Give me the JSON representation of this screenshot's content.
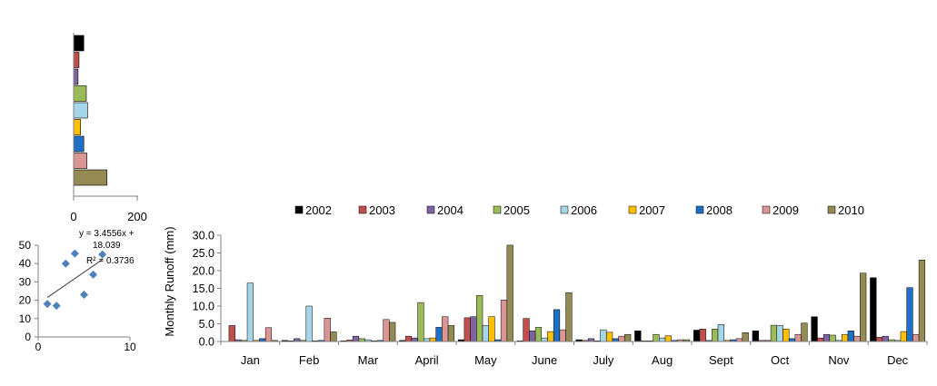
{
  "colors": {
    "2002": "#000000",
    "2003": "#c0504d",
    "2004": "#8064a2",
    "2005": "#9bbb59",
    "2006": "#a5d5e8",
    "2007": "#ffc000",
    "2008": "#1f6fc2",
    "2009": "#d99694",
    "2010": "#948a54",
    "scatter_point": "#4f81bd",
    "axis": "#808080"
  },
  "chart_data": [
    {
      "type": "bar",
      "orientation": "horizontal",
      "categories": [
        "2002",
        "2003",
        "2004",
        "2005",
        "2006",
        "2007",
        "2008",
        "2009",
        "2010"
      ],
      "values": [
        32,
        17,
        14,
        40,
        44,
        22,
        32,
        42,
        105
      ],
      "xlim": [
        0,
        200
      ],
      "xticks": [
        "0",
        "200"
      ],
      "title": "",
      "xlabel": "",
      "ylabel": "",
      "grid": false
    },
    {
      "type": "scatter",
      "points": [
        [
          1,
          18
        ],
        [
          2,
          17
        ],
        [
          3,
          40
        ],
        [
          4,
          45.5
        ],
        [
          5,
          23
        ],
        [
          6,
          34
        ],
        [
          7,
          45
        ]
      ],
      "xlim": [
        0,
        10
      ],
      "ylim": [
        0,
        50
      ],
      "xticks": [
        "0",
        "10"
      ],
      "yticks": [
        "0",
        "10",
        "20",
        "30",
        "40",
        "50"
      ],
      "trendline": {
        "slope": 3.4556,
        "intercept": 18.039
      },
      "equation": [
        "y = 3.4556x +",
        "18.039"
      ],
      "r2_label": "R² = 0.3736",
      "title": "",
      "xlabel": "",
      "ylabel": "",
      "grid": false
    },
    {
      "type": "bar",
      "orientation": "vertical",
      "categories": [
        "Jan",
        "Feb",
        "Mar",
        "April",
        "May",
        "June",
        "July",
        "Aug",
        "Sept",
        "Oct",
        "Nov",
        "Dec"
      ],
      "series": [
        {
          "name": "2002",
          "values": [
            0,
            0.3,
            0.2,
            0.3,
            0.5,
            0.2,
            0.5,
            3.0,
            3.2,
            3.0,
            7.0,
            18.0
          ]
        },
        {
          "name": "2003",
          "values": [
            4.5,
            0.2,
            0.4,
            1.5,
            6.7,
            6.5,
            0.3,
            0.2,
            3.5,
            0.3,
            1.0,
            1.2
          ]
        },
        {
          "name": "2004",
          "values": [
            0.5,
            0.8,
            1.5,
            1.0,
            7.0,
            3.0,
            0.8,
            0.2,
            0.3,
            0.3,
            2.0,
            1.5
          ]
        },
        {
          "name": "2005",
          "values": [
            0.3,
            0.3,
            0.8,
            11.0,
            13.0,
            4.0,
            0.2,
            2.0,
            3.5,
            4.6,
            1.8,
            0.5
          ]
        },
        {
          "name": "2006",
          "values": [
            16.5,
            10.0,
            0.5,
            0.8,
            4.5,
            1.0,
            3.3,
            1.0,
            4.8,
            4.5,
            0.3,
            0.3
          ]
        },
        {
          "name": "2007",
          "values": [
            0.3,
            0.2,
            0.2,
            1.0,
            7.0,
            2.8,
            2.6,
            1.6,
            0.3,
            3.5,
            2.0,
            2.8
          ]
        },
        {
          "name": "2008",
          "values": [
            0.8,
            0.3,
            0.3,
            4.0,
            0.5,
            9.0,
            0.8,
            0.3,
            0.5,
            0.8,
            3.0,
            15.2
          ]
        },
        {
          "name": "2009",
          "values": [
            3.9,
            6.6,
            6.2,
            7.0,
            11.7,
            3.3,
            1.5,
            0.5,
            0.8,
            2.0,
            1.5,
            2.0
          ]
        },
        {
          "name": "2010",
          "values": [
            0.3,
            2.7,
            5.4,
            4.5,
            27.2,
            13.8,
            2.0,
            0.5,
            2.5,
            5.2,
            19.3,
            23.0
          ]
        }
      ],
      "ylim": [
        0,
        30
      ],
      "yticks": [
        "0.0",
        "5.0",
        "10.0",
        "15.0",
        "20.0",
        "25.0",
        "30.0"
      ],
      "title": "",
      "xlabel": "",
      "ylabel": "Monthly  Runoff (mm)",
      "legend_position": "top",
      "grid": false
    }
  ]
}
